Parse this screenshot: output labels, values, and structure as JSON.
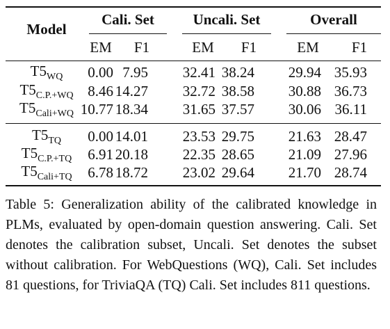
{
  "table": {
    "header": {
      "model": "Model",
      "groups": [
        "Cali. Set",
        "Uncali. Set",
        "Overall"
      ],
      "metrics": [
        "EM",
        "F1",
        "EM",
        "F1",
        "EM",
        "F1"
      ]
    },
    "sections": [
      [
        {
          "model": {
            "base": "T5",
            "sub": "WQ"
          },
          "cells": [
            "0.00",
            "7.95",
            "32.41",
            "38.24",
            "29.94",
            "35.93"
          ]
        },
        {
          "model": {
            "base": "T5",
            "sub": "C.P.+WQ"
          },
          "cells": [
            "8.46",
            "14.27",
            "32.72",
            "38.58",
            "30.88",
            "36.73"
          ]
        },
        {
          "model": {
            "base": "T5",
            "sub": "Cali+WQ"
          },
          "cells": [
            "10.77",
            "18.34",
            "31.65",
            "37.57",
            "30.06",
            "36.11"
          ]
        }
      ],
      [
        {
          "model": {
            "base": "T5",
            "sub": "TQ"
          },
          "cells": [
            "0.00",
            "14.01",
            "23.53",
            "29.75",
            "21.63",
            "28.47"
          ]
        },
        {
          "model": {
            "base": "T5",
            "sub": "C.P.+TQ"
          },
          "cells": [
            "6.91",
            "20.18",
            "22.35",
            "28.65",
            "21.09",
            "27.96"
          ]
        },
        {
          "model": {
            "base": "T5",
            "sub": "Cali+TQ"
          },
          "cells": [
            "6.78",
            "18.72",
            "23.02",
            "29.64",
            "21.70",
            "28.74"
          ]
        }
      ]
    ]
  },
  "caption": "Table 5: Generalization ability of the calibrated knowledge in PLMs, evaluated by open-domain question answering. Cali. Set denotes the calibration subset, Uncali. Set denotes the subset without calibration. For WebQuestions (WQ), Cali. Set includes 81 questions, for TriviaQA (TQ) Cali. Set includes 811 questions."
}
